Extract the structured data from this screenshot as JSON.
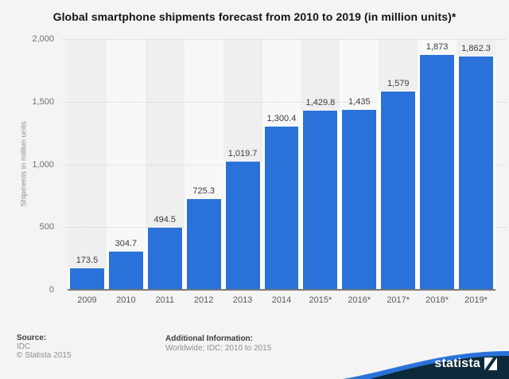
{
  "title": "Global smartphone shipments forecast from 2010 to 2019 (in million units)*",
  "chart_data": {
    "type": "bar",
    "title": "Global smartphone shipments forecast from 2010 to 2019 (in million units)*",
    "categories": [
      "2009",
      "2010",
      "2011",
      "2012",
      "2013",
      "2014",
      "2015*",
      "2016*",
      "2017*",
      "2018*",
      "2019*"
    ],
    "values": [
      173.5,
      304.7,
      494.5,
      725.3,
      1019.7,
      1300.4,
      1429.8,
      1435,
      1579,
      1873,
      1862.3
    ],
    "value_labels": [
      "173.5",
      "304.7",
      "494.5",
      "725.3",
      "1,019.7",
      "1,300.4",
      "1,429.8",
      "1,435",
      "1,579",
      "1,873",
      "1,862.3"
    ],
    "xlabel": "",
    "ylabel": "Shipments in million units",
    "ylim": [
      0,
      2000
    ],
    "yticks": [
      {
        "value": 0,
        "label": "0"
      },
      {
        "value": 500,
        "label": "500"
      },
      {
        "value": 1000,
        "label": "1,000"
      },
      {
        "value": 1500,
        "label": "1,500"
      },
      {
        "value": 2000,
        "label": "2,000"
      }
    ],
    "grid": "horizontal dotted",
    "legend_position": "none",
    "bar_color": "#2a72d9"
  },
  "footer": {
    "source_label": "Source:",
    "source_value": "IDC",
    "copyright": "© Statista 2015",
    "additional_label": "Additional Information:",
    "additional_value": "Worldwide; IDC; 2010 to 2015"
  },
  "branding": {
    "logo_text": "statista"
  },
  "colors": {
    "background": "#f4f4f4",
    "bar": "#2a72d9",
    "band_dark": "#efefef",
    "band_light": "#f8f8f8",
    "gridline": "#d2d2d2",
    "axis_line": "#7a7a7a",
    "swoosh_navy": "#0d2a3a",
    "swoosh_blue": "#2a72d9",
    "title_text": "#141414",
    "muted_text": "#8e8e8e"
  }
}
